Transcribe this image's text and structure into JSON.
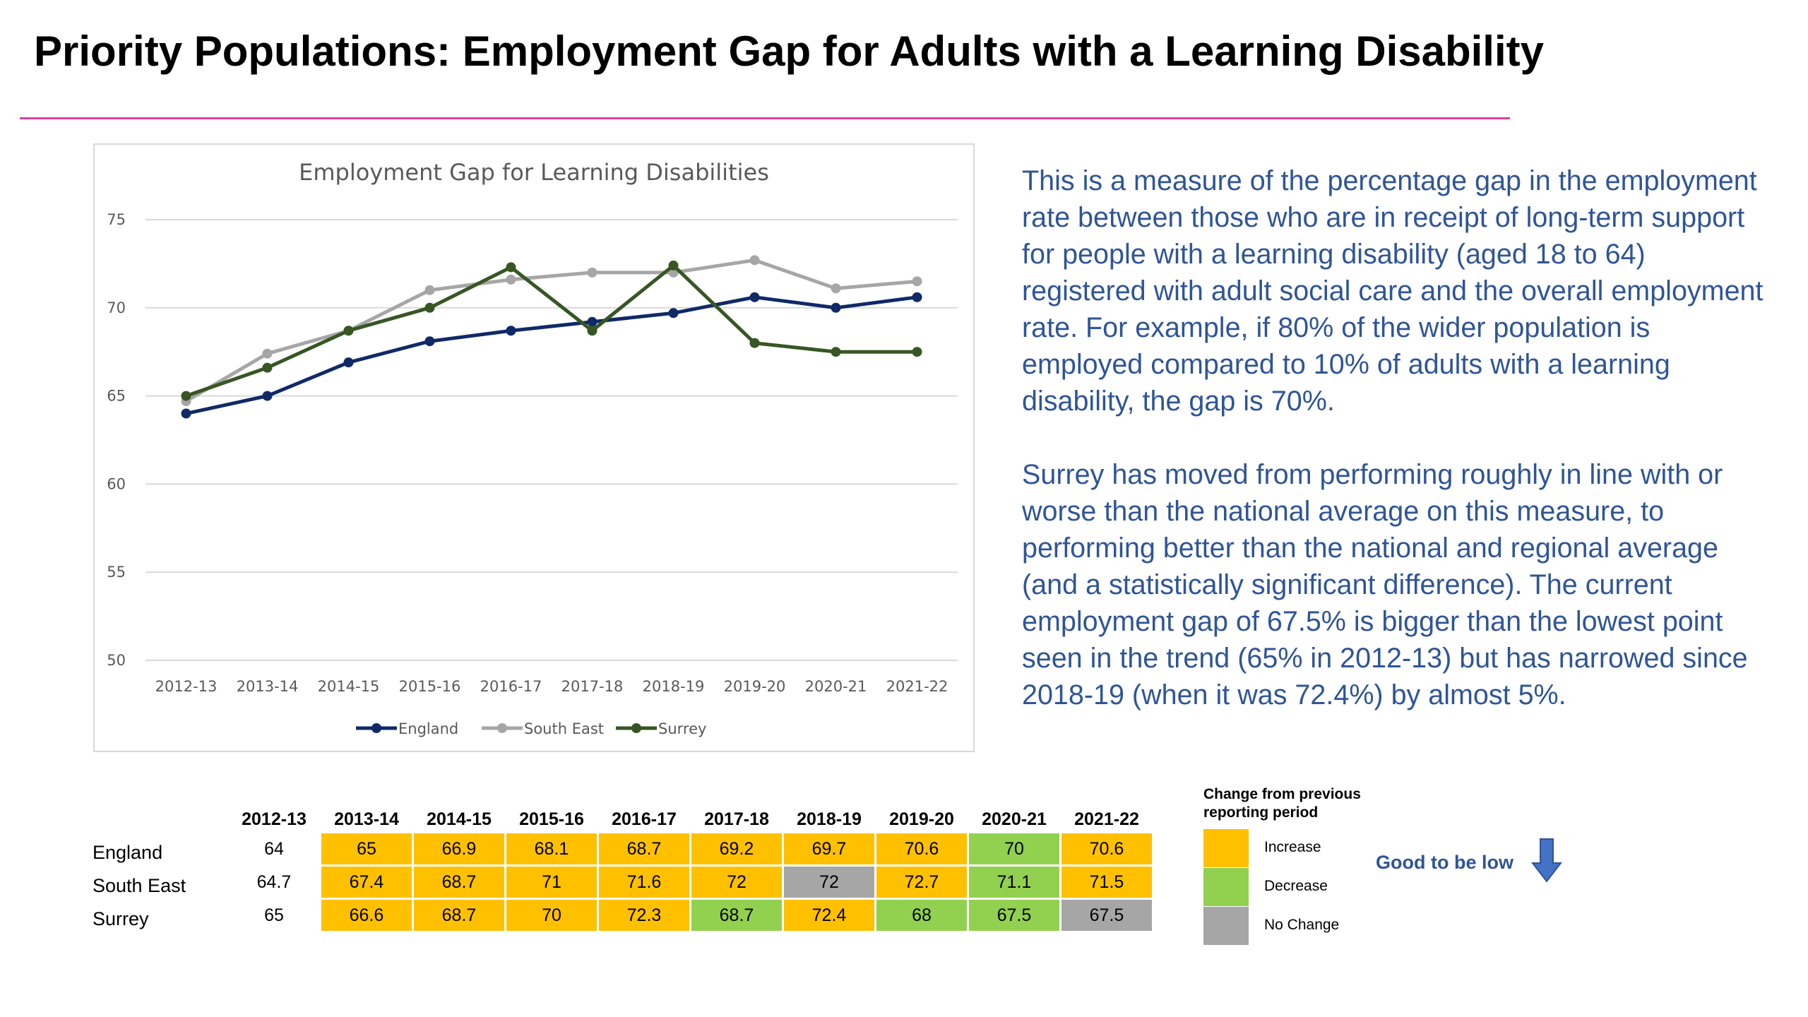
{
  "page": {
    "title": "Priority Populations: Employment Gap for Adults with a Learning Disability"
  },
  "colors": {
    "increase": "#ffc000",
    "decrease": "#92d050",
    "no_change": "#a6a6a6",
    "england": "#0f2a66",
    "south_east": "#a6a6a6",
    "surrey": "#375623",
    "text_blue": "#2f5597",
    "rule": "#e0409b"
  },
  "description": {
    "para1": "This is a measure of the percentage gap in the employment rate between those who are in receipt of long-term support for people with a  learning disability (aged 18 to 64) registered with adult social care and the overall employment rate. For example, if 80% of the wider population is employed compared to 10% of adults with a learning disability, the gap is 70%.",
    "para2": "Surrey has moved from performing roughly in line with or worse than the national average on this measure, to performing better than the national and regional average (and a statistically significant difference). The current employment gap of 67.5% is bigger than the lowest point seen in the trend (65% in 2012-13) but has narrowed since 2018-19 (when it was 72.4%) by almost 5%."
  },
  "chart_data": {
    "type": "line",
    "title": "Employment Gap for Learning Disabilities",
    "categories": [
      "2012-13",
      "2013-14",
      "2014-15",
      "2015-16",
      "2016-17",
      "2017-18",
      "2018-19",
      "2019-20",
      "2020-21",
      "2021-22"
    ],
    "ylim": [
      50,
      75
    ],
    "yticks": [
      50,
      55,
      60,
      65,
      70,
      75
    ],
    "grid": true,
    "legend_position": "bottom",
    "series": [
      {
        "name": "England",
        "color": "#0f2a66",
        "values": [
          64,
          65,
          66.9,
          68.1,
          68.7,
          69.2,
          69.7,
          70.6,
          70,
          70.6
        ]
      },
      {
        "name": "South East",
        "color": "#a6a6a6",
        "values": [
          64.7,
          67.4,
          68.7,
          71,
          71.6,
          72,
          72,
          72.7,
          71.1,
          71.5
        ]
      },
      {
        "name": "Surrey",
        "color": "#375623",
        "values": [
          65,
          66.6,
          68.7,
          70,
          72.3,
          68.7,
          72.4,
          68,
          67.5,
          67.5
        ]
      }
    ]
  },
  "table": {
    "headers": [
      "2012-13",
      "2013-14",
      "2014-15",
      "2015-16",
      "2016-17",
      "2017-18",
      "2018-19",
      "2019-20",
      "2020-21",
      "2021-22"
    ],
    "rows": [
      {
        "label": "England",
        "values": [
          "64",
          "65",
          "66.9",
          "68.1",
          "68.7",
          "69.2",
          "69.7",
          "70.6",
          "70",
          "70.6"
        ],
        "status": [
          "none",
          "increase",
          "increase",
          "increase",
          "increase",
          "increase",
          "increase",
          "increase",
          "decrease",
          "increase"
        ]
      },
      {
        "label": "South East",
        "values": [
          "64.7",
          "67.4",
          "68.7",
          "71",
          "71.6",
          "72",
          "72",
          "72.7",
          "71.1",
          "71.5"
        ],
        "status": [
          "none",
          "increase",
          "increase",
          "increase",
          "increase",
          "increase",
          "no_change",
          "increase",
          "decrease",
          "increase"
        ]
      },
      {
        "label": "Surrey",
        "values": [
          "65",
          "66.6",
          "68.7",
          "70",
          "72.3",
          "68.7",
          "72.4",
          "68",
          "67.5",
          "67.5"
        ],
        "status": [
          "none",
          "increase",
          "increase",
          "increase",
          "increase",
          "decrease",
          "increase",
          "decrease",
          "decrease",
          "no_change"
        ]
      }
    ]
  },
  "key": {
    "heading": "Change from previous reporting period",
    "increase": "Increase",
    "decrease": "Decrease",
    "no_change": "No Change",
    "good_label": "Good to be low",
    "good_icon": "down-arrow-icon"
  }
}
